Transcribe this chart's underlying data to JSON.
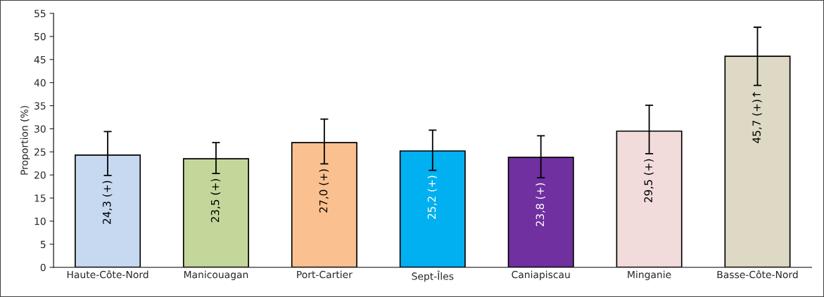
{
  "chart_data": {
    "type": "bar",
    "ylabel": "Proportion (%)",
    "categories": [
      "Haute-Côte-Nord",
      "Manicouagan",
      "Port-Cartier",
      "Sept-Îles",
      "Caniapiscau",
      "Minganie",
      "Basse-Côte-Nord"
    ],
    "values": [
      24.3,
      23.5,
      27.0,
      25.2,
      23.8,
      29.5,
      45.7
    ],
    "colors": [
      "#c6d9f1",
      "#c4d79b",
      "#fac090",
      "#00b0f0",
      "#7030a0",
      "#f2dcdb",
      "#ddd9c4"
    ],
    "errors": [
      [
        19.9,
        29.4
      ],
      [
        20.3,
        27.0
      ],
      [
        22.4,
        32.1
      ],
      [
        21.0,
        29.7
      ],
      [
        19.4,
        28.5
      ],
      [
        24.6,
        35.1
      ],
      [
        39.4,
        52.0
      ]
    ],
    "value_labels": [
      "24,3 (+)",
      "23,5 (+)",
      "27,0 (+)",
      "25,2 (+)",
      "23,8 (+)",
      "29,5 (+)",
      "45,7 (+)↑"
    ],
    "ylim": [
      0,
      55
    ],
    "yticks": [
      0,
      5,
      10,
      15,
      20,
      25,
      30,
      35,
      40,
      45,
      50,
      55
    ],
    "grid": false,
    "legend": false
  }
}
